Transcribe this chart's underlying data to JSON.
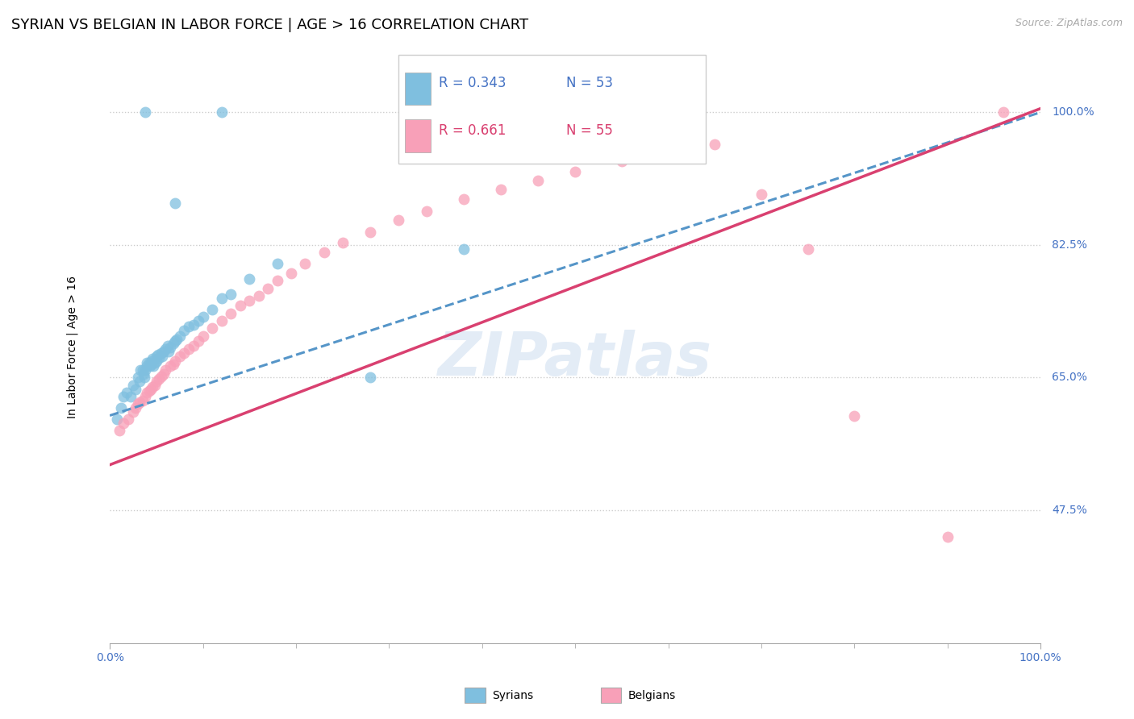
{
  "title": "SYRIAN VS BELGIAN IN LABOR FORCE | AGE > 16 CORRELATION CHART",
  "source_text": "Source: ZipAtlas.com",
  "ylabel": "In Labor Force | Age > 16",
  "xlim": [
    0.0,
    1.0
  ],
  "ylim": [
    0.3,
    1.08
  ],
  "ytick_positions": [
    0.475,
    0.65,
    0.825,
    1.0
  ],
  "ytick_labels": [
    "47.5%",
    "65.0%",
    "82.5%",
    "100.0%"
  ],
  "legend_r_syrian": "R = 0.343",
  "legend_n_syrian": "N = 53",
  "legend_r_belgian": "R = 0.661",
  "legend_n_belgian": "N = 55",
  "syrian_color": "#7fbfdf",
  "belgian_color": "#f8a0b8",
  "trend_syrian_color": "#5595c8",
  "trend_belgian_color": "#d94070",
  "background_color": "#ffffff",
  "grid_color": "#cccccc",
  "dot_size": 100,
  "syrian_x": [
    0.008,
    0.012,
    0.015,
    0.018,
    0.022,
    0.025,
    0.028,
    0.03,
    0.032,
    0.033,
    0.035,
    0.036,
    0.037,
    0.038,
    0.04,
    0.04,
    0.042,
    0.043,
    0.044,
    0.045,
    0.046,
    0.047,
    0.048,
    0.05,
    0.05,
    0.052,
    0.053,
    0.055,
    0.056,
    0.058,
    0.06,
    0.062,
    0.063,
    0.065,
    0.068,
    0.07,
    0.072,
    0.075,
    0.08,
    0.085,
    0.09,
    0.095,
    0.1,
    0.11,
    0.12,
    0.13,
    0.15,
    0.18,
    0.28,
    0.38,
    0.038,
    0.12,
    0.07
  ],
  "syrian_y": [
    0.595,
    0.61,
    0.625,
    0.63,
    0.625,
    0.64,
    0.635,
    0.65,
    0.645,
    0.66,
    0.66,
    0.655,
    0.65,
    0.66,
    0.665,
    0.67,
    0.67,
    0.665,
    0.668,
    0.672,
    0.675,
    0.665,
    0.67,
    0.678,
    0.672,
    0.68,
    0.676,
    0.682,
    0.678,
    0.685,
    0.688,
    0.692,
    0.685,
    0.69,
    0.695,
    0.698,
    0.7,
    0.705,
    0.712,
    0.718,
    0.72,
    0.725,
    0.73,
    0.74,
    0.755,
    0.76,
    0.78,
    0.8,
    0.65,
    0.82,
    1.0,
    1.0,
    0.88
  ],
  "belgian_x": [
    0.01,
    0.015,
    0.02,
    0.025,
    0.028,
    0.03,
    0.032,
    0.035,
    0.038,
    0.04,
    0.042,
    0.044,
    0.046,
    0.048,
    0.05,
    0.053,
    0.055,
    0.058,
    0.06,
    0.065,
    0.068,
    0.07,
    0.075,
    0.08,
    0.085,
    0.09,
    0.095,
    0.1,
    0.11,
    0.12,
    0.13,
    0.14,
    0.15,
    0.16,
    0.17,
    0.18,
    0.195,
    0.21,
    0.23,
    0.25,
    0.28,
    0.31,
    0.34,
    0.38,
    0.42,
    0.46,
    0.5,
    0.55,
    0.6,
    0.65,
    0.7,
    0.75,
    0.8,
    0.9,
    0.96
  ],
  "belgian_y": [
    0.58,
    0.59,
    0.595,
    0.605,
    0.61,
    0.615,
    0.618,
    0.62,
    0.625,
    0.63,
    0.632,
    0.635,
    0.638,
    0.64,
    0.645,
    0.648,
    0.652,
    0.655,
    0.66,
    0.665,
    0.668,
    0.672,
    0.678,
    0.682,
    0.688,
    0.692,
    0.698,
    0.705,
    0.715,
    0.725,
    0.735,
    0.745,
    0.752,
    0.758,
    0.768,
    0.778,
    0.788,
    0.8,
    0.815,
    0.828,
    0.842,
    0.858,
    0.87,
    0.885,
    0.898,
    0.91,
    0.922,
    0.935,
    0.948,
    0.958,
    0.892,
    0.82,
    0.6,
    0.44,
    1.0
  ],
  "trend_syrian_intercept": 0.6,
  "trend_syrian_slope": 0.4,
  "trend_belgian_intercept": 0.535,
  "trend_belgian_slope": 0.47
}
